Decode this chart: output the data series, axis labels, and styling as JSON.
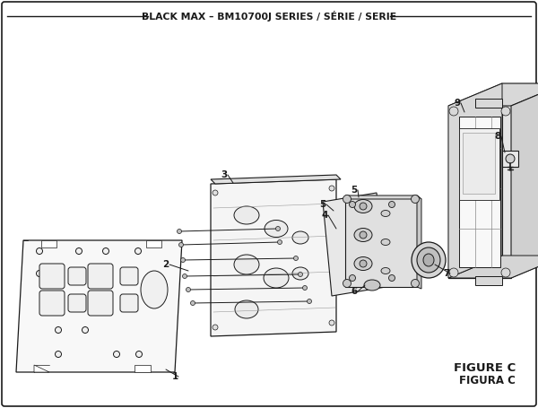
{
  "title": "BLACK MAX – BM10700J SERIES / SÉRIE / SERIE",
  "figure_label": "FIGURE C",
  "figura_label": "FIGURA C",
  "bg_color": "#ffffff",
  "lc": "#1a1a1a",
  "lw": 0.7,
  "title_fontsize": 7.8,
  "label_fontsize": 7.5,
  "fig_label_fontsize": 9.5
}
